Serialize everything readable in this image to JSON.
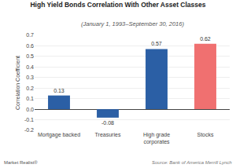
{
  "chart_data": {
    "type": "bar",
    "title": "High Yield Bonds Correlation With Other Asset Classes",
    "subtitle": "(January 1, 1993–September 30, 2016)",
    "categories": [
      "Mortgage backed",
      "Treasuries",
      "High grade\ncorporates",
      "Stocks"
    ],
    "values": [
      0.13,
      -0.08,
      0.57,
      0.62
    ],
    "colors": [
      "#2b5fa5",
      "#2b5fa5",
      "#2b5fa5",
      "#f07070"
    ],
    "ylabel": "Correlation Coefficient",
    "ylim": [
      -0.2,
      0.7
    ],
    "yticks": [
      -0.2,
      -0.1,
      {
        "value": 0,
        "label": "0.0"
      },
      0.1,
      0.2,
      0.3,
      0.4,
      0.5,
      0.6,
      0.7
    ],
    "grid": true,
    "data_labels": true,
    "annotations": [
      "Market Realist®",
      "Source: Bank of America Merrill Lynch"
    ]
  }
}
